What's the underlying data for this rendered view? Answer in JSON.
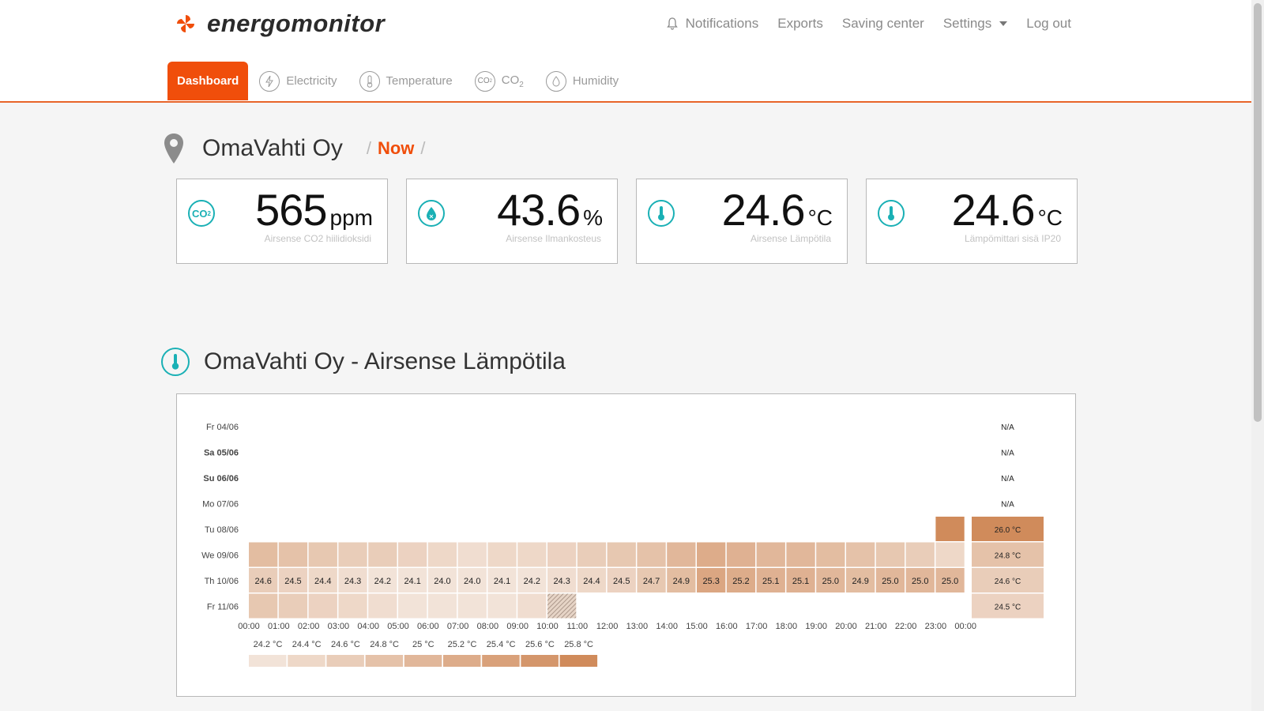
{
  "app": {
    "name": "energomonitor"
  },
  "topnav": {
    "notifications": "Notifications",
    "exports": "Exports",
    "saving_center": "Saving center",
    "settings": "Settings",
    "logout": "Log out"
  },
  "tabs": [
    {
      "label": "Dashboard",
      "icon": "dashboard",
      "active": true
    },
    {
      "label": "Electricity",
      "icon": "lightning-icon",
      "active": false
    },
    {
      "label": "Temperature",
      "icon": "thermometer-icon",
      "active": false
    },
    {
      "label": "CO",
      "sub": "2",
      "icon": "co2-icon",
      "active": false
    },
    {
      "label": "Humidity",
      "icon": "drop-icon",
      "active": false
    }
  ],
  "location": {
    "name": "OmaVahti Oy",
    "crumb_now": "Now",
    "sep": "/"
  },
  "cards": [
    {
      "value": "565",
      "unit": "ppm",
      "label": "Airsense CO2 hiilidioksidi",
      "icon": "co2-icon"
    },
    {
      "value": "43.6",
      "unit": "%",
      "label": "Airsense Ilmankosteus",
      "icon": "drop-icon"
    },
    {
      "value": "24.6",
      "unit": "°C",
      "label": "Airsense Lämpötila",
      "icon": "thermometer-icon"
    },
    {
      "value": "24.6",
      "unit": "°C",
      "label": "Lämpömittari sisä IP20",
      "icon": "thermometer-icon"
    }
  ],
  "section": {
    "title": "OmaVahti Oy - Airsense Lämpötila",
    "icon": "thermometer-icon"
  },
  "colors": {
    "accent": "#f04e0b",
    "teal": "#1ab0b5"
  },
  "chart_data": {
    "type": "heatmap",
    "rows": [
      {
        "label": "Fr 04/06",
        "bold": false,
        "summary": "N/A"
      },
      {
        "label": "Sa 05/06",
        "bold": true,
        "summary": "N/A"
      },
      {
        "label": "Su 06/06",
        "bold": true,
        "summary": "N/A"
      },
      {
        "label": "Mo 07/06",
        "bold": false,
        "summary": "N/A"
      },
      {
        "label": "Tu 08/06",
        "bold": false,
        "summary": "26.0 °C"
      },
      {
        "label": "We 09/06",
        "bold": false,
        "summary": "24.8 °C"
      },
      {
        "label": "Th 10/06",
        "bold": false,
        "summary": "24.6 °C"
      },
      {
        "label": "Fr 11/06",
        "bold": false,
        "summary": "24.5 °C"
      }
    ],
    "hours": [
      "00:00",
      "01:00",
      "02:00",
      "03:00",
      "04:00",
      "05:00",
      "06:00",
      "07:00",
      "08:00",
      "09:00",
      "10:00",
      "11:00",
      "12:00",
      "13:00",
      "14:00",
      "15:00",
      "16:00",
      "17:00",
      "18:00",
      "19:00",
      "20:00",
      "21:00",
      "22:00",
      "23:00",
      "00:00"
    ],
    "values": [
      [
        null,
        null,
        null,
        null,
        null,
        null,
        null,
        null,
        null,
        null,
        null,
        null,
        null,
        null,
        null,
        null,
        null,
        null,
        null,
        null,
        null,
        null,
        null,
        null
      ],
      [
        null,
        null,
        null,
        null,
        null,
        null,
        null,
        null,
        null,
        null,
        null,
        null,
        null,
        null,
        null,
        null,
        null,
        null,
        null,
        null,
        null,
        null,
        null,
        null
      ],
      [
        null,
        null,
        null,
        null,
        null,
        null,
        null,
        null,
        null,
        null,
        null,
        null,
        null,
        null,
        null,
        null,
        null,
        null,
        null,
        null,
        null,
        null,
        null,
        null
      ],
      [
        null,
        null,
        null,
        null,
        null,
        null,
        null,
        null,
        null,
        null,
        null,
        null,
        null,
        null,
        null,
        null,
        null,
        null,
        null,
        null,
        null,
        null,
        null,
        null
      ],
      [
        null,
        null,
        null,
        null,
        null,
        null,
        null,
        null,
        null,
        null,
        null,
        null,
        null,
        null,
        null,
        null,
        null,
        null,
        null,
        null,
        null,
        null,
        null,
        26.0
      ],
      [
        24.9,
        24.8,
        24.7,
        24.6,
        24.6,
        24.5,
        24.4,
        24.3,
        24.4,
        24.4,
        24.5,
        24.6,
        24.7,
        24.8,
        25.0,
        25.2,
        25.1,
        25.0,
        25.0,
        24.9,
        24.8,
        24.7,
        24.6,
        24.4
      ],
      [
        24.6,
        24.5,
        24.4,
        24.3,
        24.2,
        24.1,
        24.0,
        24.0,
        24.1,
        24.2,
        24.3,
        24.4,
        24.5,
        24.7,
        24.9,
        25.3,
        25.2,
        25.1,
        25.1,
        25.0,
        24.9,
        25.0,
        25.0,
        25.0
      ],
      [
        24.7,
        24.6,
        24.5,
        24.4,
        24.3,
        24.2,
        24.1,
        24.1,
        24.2,
        24.3,
        "partial",
        null,
        null,
        null,
        null,
        null,
        null,
        null,
        null,
        null,
        null,
        null,
        null,
        null
      ]
    ],
    "labeled_row": 6,
    "legend": [
      {
        "label": "24.2 °C",
        "value": 24.2
      },
      {
        "label": "24.4 °C",
        "value": 24.4
      },
      {
        "label": "24.6 °C",
        "value": 24.6
      },
      {
        "label": "24.8 °C",
        "value": 24.8
      },
      {
        "label": "25 °C",
        "value": 25.0
      },
      {
        "label": "25.2 °C",
        "value": 25.2
      },
      {
        "label": "25.4 °C",
        "value": 25.4
      },
      {
        "label": "25.6 °C",
        "value": 25.6
      },
      {
        "label": "25.8 °C",
        "value": 25.8
      }
    ],
    "color_low": "#f2e3d8",
    "color_high": "#d08b5b"
  }
}
